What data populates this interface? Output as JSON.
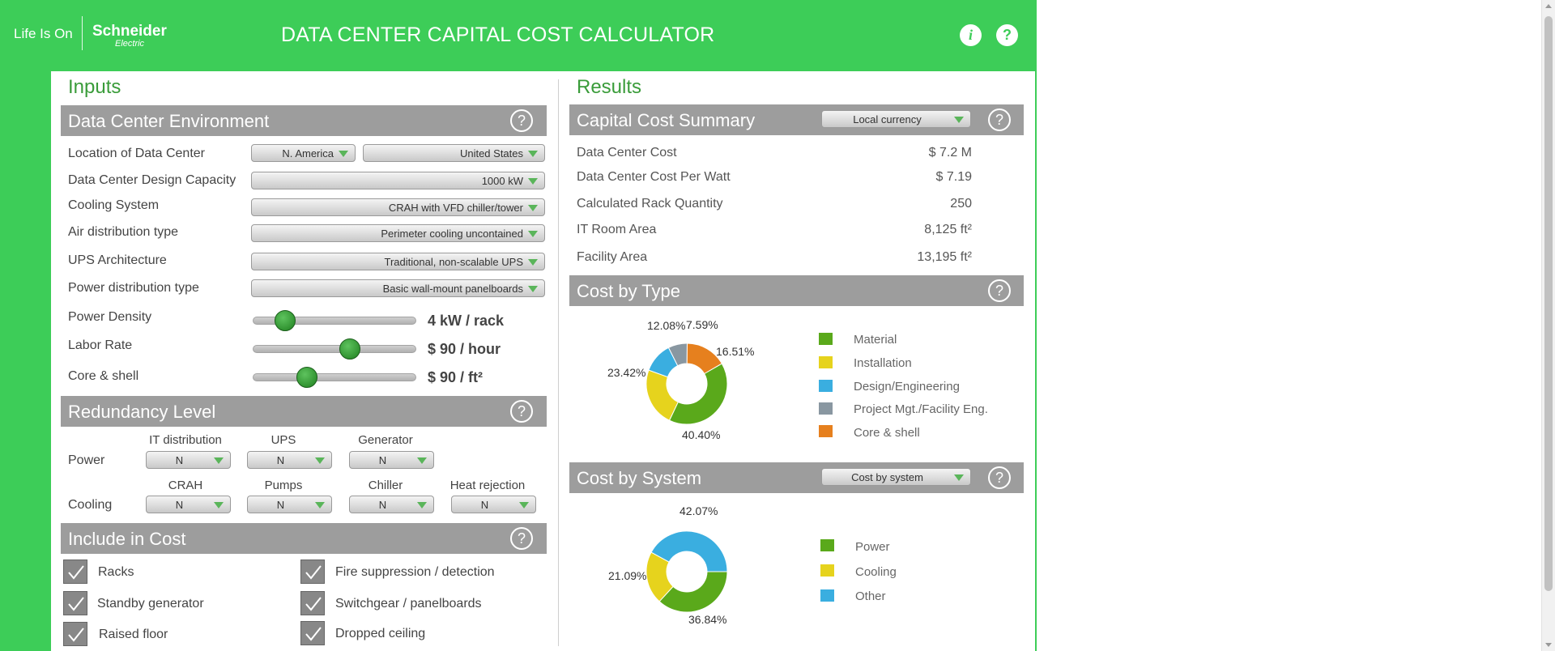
{
  "header": {
    "logo_tagline": "Life Is On",
    "logo_brand": "Schneider",
    "logo_brand_sub": "Electric",
    "title": "DATA CENTER CAPITAL COST CALCULATOR",
    "info_icon": "i",
    "help_icon": "?"
  },
  "inputs": {
    "title": "Inputs",
    "environment": {
      "title": "Data Center Environment",
      "help": "?",
      "location_label": "Location of Data Center",
      "region": "N. America",
      "country": "United States",
      "capacity_label": "Data Center Design Capacity",
      "capacity": "1000 kW",
      "cooling_label": "Cooling System",
      "cooling": "CRAH with VFD chiller/tower",
      "air_label": "Air distribution type",
      "air": "Perimeter cooling uncontained",
      "ups_label": "UPS Architecture",
      "ups": "Traditional, non-scalable UPS",
      "power_dist_label": "Power distribution type",
      "power_dist": "Basic wall-mount panelboards",
      "power_density_label": "Power Density",
      "power_density_value": "4 kW / rack",
      "power_density_level": 0.15,
      "labor_label": "Labor Rate",
      "labor_value": "$ 90 / hour",
      "labor_level": 0.6,
      "core_label": "Core & shell",
      "core_value": "$ 90 / ft²",
      "core_level": 0.3
    },
    "redundancy": {
      "title": "Redundancy Level",
      "help": "?",
      "power_label": "Power",
      "cooling_label": "Cooling",
      "power_headers": [
        "IT distribution",
        "UPS",
        "Generator"
      ],
      "power_values": [
        "N",
        "N",
        "N"
      ],
      "cooling_headers": [
        "CRAH",
        "Pumps",
        "Chiller",
        "Heat rejection"
      ],
      "cooling_values": [
        "N",
        "N",
        "N",
        "N"
      ]
    },
    "include": {
      "title": "Include in Cost",
      "help": "?",
      "left": [
        "Racks",
        "Standby generator",
        "Raised floor"
      ],
      "right": [
        "Fire suppression / detection",
        "Switchgear / panelboards",
        "Dropped ceiling"
      ]
    }
  },
  "results": {
    "title": "Results",
    "summary": {
      "title": "Capital Cost Summary",
      "currency": "Local currency",
      "help": "?",
      "rows": [
        {
          "label": "Data Center Cost",
          "value": "$ 7.2 M"
        },
        {
          "label": "Data Center Cost Per Watt",
          "value": "$ 7.19"
        },
        {
          "label": "Calculated Rack Quantity",
          "value": "250"
        },
        {
          "label": "IT Room Area",
          "value": "8,125 ft²"
        },
        {
          "label": "Facility Area",
          "value": "13,195 ft²"
        }
      ]
    },
    "by_type": {
      "title": "Cost by Type",
      "help": "?",
      "legend": [
        "Material",
        "Installation",
        "Design/Engineering",
        "Project Mgt./Facility Eng.",
        "Core & shell"
      ],
      "colors": [
        "#5aa91b",
        "#e6d31d",
        "#3aaee0",
        "#8997a1",
        "#e6801e"
      ],
      "labels": [
        "40.40%",
        "23.42%",
        "12.08%",
        "7.59%",
        "16.51%"
      ]
    },
    "by_system": {
      "title": "Cost by System",
      "dropdown": "Cost by system",
      "help": "?",
      "legend": [
        "Power",
        "Cooling",
        "Other"
      ],
      "colors": [
        "#5aa91b",
        "#e6d31d",
        "#3aaee0"
      ],
      "labels": [
        "36.84%",
        "21.09%",
        "42.07%"
      ]
    }
  },
  "chart_data": [
    {
      "type": "pie",
      "title": "Cost by Type",
      "categories": [
        "Material",
        "Installation",
        "Design/Engineering",
        "Project Mgt./Facility Eng.",
        "Core & shell"
      ],
      "values": [
        40.4,
        23.42,
        12.08,
        7.59,
        16.51
      ]
    },
    {
      "type": "pie",
      "title": "Cost by System",
      "categories": [
        "Power",
        "Cooling",
        "Other"
      ],
      "values": [
        36.84,
        21.09,
        42.07
      ]
    }
  ]
}
